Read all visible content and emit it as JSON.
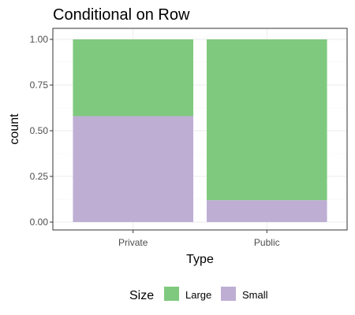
{
  "chart_data": {
    "type": "bar",
    "stacked": true,
    "title": "Conditional on Row",
    "xlabel": "Type",
    "ylabel": "count",
    "categories": [
      "Private",
      "Public"
    ],
    "series": [
      {
        "name": "Large",
        "color": "#7fc97f",
        "values": [
          0.42,
          0.88
        ]
      },
      {
        "name": "Small",
        "color": "#beaed4",
        "values": [
          0.58,
          0.12
        ]
      }
    ],
    "stack_order": [
      "Small",
      "Large"
    ],
    "ylim": [
      0,
      1
    ],
    "yticks": [
      0,
      0.25,
      0.5,
      0.75,
      1
    ],
    "ytick_labels": [
      "0.00",
      "0.25",
      "0.50",
      "0.75",
      "1.00"
    ],
    "grid": true,
    "legend": {
      "title": "Size",
      "position": "bottom",
      "entries": [
        "Large",
        "Small"
      ]
    }
  }
}
